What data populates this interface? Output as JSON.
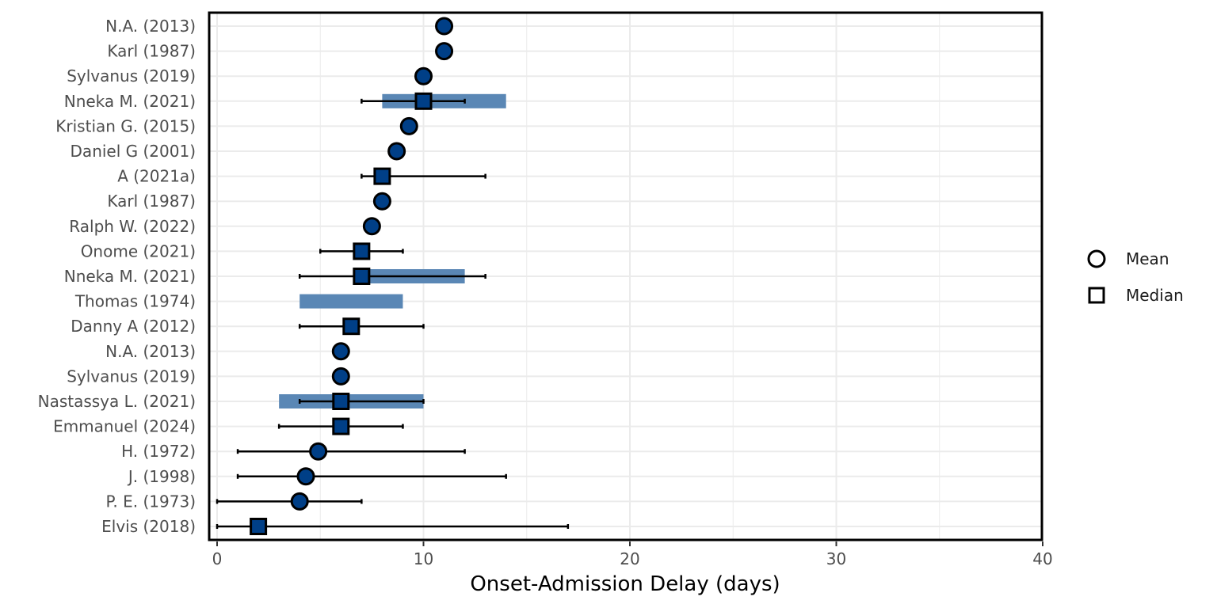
{
  "chart_data": {
    "type": "scatter",
    "xlabel": "Onset-Admission Delay (days)",
    "xlim": [
      0,
      40
    ],
    "x_ticks": [
      "0",
      "10",
      "20",
      "30",
      "40"
    ],
    "grid": true,
    "legend_position": "right",
    "legend": [
      {
        "key": "Mean",
        "label": "Mean",
        "shape": "circle"
      },
      {
        "key": "Median",
        "label": "Median",
        "shape": "square"
      }
    ],
    "colors": {
      "point_fill": "#003f87",
      "point_stroke": "#000000",
      "iqr_bar": "#5a87b5",
      "range_line": "#000000",
      "grid": "#ebebeb",
      "panel_border": "#000000"
    },
    "rows": [
      {
        "label": "N.A. (2013)",
        "stat": "Mean",
        "value": 11
      },
      {
        "label": "Karl (1987)",
        "stat": "Mean",
        "value": 11
      },
      {
        "label": "Sylvanus (2019)",
        "stat": "Mean",
        "value": 10
      },
      {
        "label": "Nneka M. (2021)",
        "stat": "Median",
        "value": 10,
        "iqr": [
          8,
          14
        ],
        "range": [
          7,
          12
        ]
      },
      {
        "label": "Kristian G. (2015)",
        "stat": "Mean",
        "value": 9.3
      },
      {
        "label": "Daniel G (2001)",
        "stat": "Mean",
        "value": 8.7
      },
      {
        "label": "A (2021a)",
        "stat": "Median",
        "value": 8,
        "range": [
          7,
          13
        ]
      },
      {
        "label": "Karl (1987)",
        "stat": "Mean",
        "value": 8
      },
      {
        "label": "Ralph W. (2022)",
        "stat": "Mean",
        "value": 7.5
      },
      {
        "label": "Onome (2021)",
        "stat": "Median",
        "value": 7,
        "range": [
          5,
          9
        ]
      },
      {
        "label": "Nneka M. (2021)",
        "stat": "Median",
        "value": 7,
        "iqr": [
          7,
          12
        ],
        "range": [
          4,
          13
        ]
      },
      {
        "label": "Thomas (1974)",
        "stat": null,
        "value": null,
        "iqr": [
          4,
          9
        ]
      },
      {
        "label": "Danny A (2012)",
        "stat": "Median",
        "value": 6.5,
        "range": [
          4,
          10
        ]
      },
      {
        "label": "N.A. (2013)",
        "stat": "Mean",
        "value": 6
      },
      {
        "label": "Sylvanus (2019)",
        "stat": "Mean",
        "value": 6
      },
      {
        "label": "Nastassya L. (2021)",
        "stat": "Median",
        "value": 6,
        "iqr": [
          3,
          10
        ],
        "range": [
          4,
          10
        ]
      },
      {
        "label": "Emmanuel (2024)",
        "stat": "Median",
        "value": 6,
        "range": [
          3,
          9
        ]
      },
      {
        "label": "H. (1972)",
        "stat": "Mean",
        "value": 4.9,
        "range": [
          1,
          12
        ]
      },
      {
        "label": "J. (1998)",
        "stat": "Mean",
        "value": 4.3,
        "range": [
          1,
          14
        ]
      },
      {
        "label": "P. E. (1973)",
        "stat": "Mean",
        "value": 4,
        "range": [
          0,
          7
        ]
      },
      {
        "label": "Elvis (2018)",
        "stat": "Median",
        "value": 2,
        "range": [
          0,
          17
        ]
      }
    ]
  }
}
